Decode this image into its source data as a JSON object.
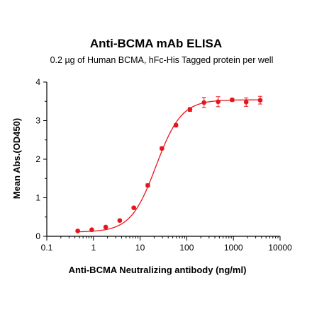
{
  "chart_data": {
    "type": "scatter",
    "title": "Anti-BCMA mAb ELISA",
    "subtitle": "0.2 µg of Human BCMA, hFc-His Tagged protein per well",
    "xlabel": "Anti-BCMA Neutralizing antibody (ng/ml)",
    "ylabel": "Mean Abs.(OD450)",
    "xscale": "log",
    "xlim": [
      0.1,
      10000
    ],
    "ylim": [
      0,
      4
    ],
    "x_ticks": [
      "0.1",
      "1",
      "10",
      "100",
      "1000",
      "10000"
    ],
    "y_ticks": [
      "0",
      "1",
      "2",
      "3",
      "4"
    ],
    "grid": false,
    "legend": "none",
    "color": "#e8141b",
    "series": [
      {
        "x": [
          0.46,
          0.92,
          1.83,
          3.66,
          7.32,
          14.6,
          29.3,
          58.6,
          117,
          234,
          469,
          938,
          1875,
          3750
        ],
        "y": [
          0.14,
          0.17,
          0.24,
          0.41,
          0.74,
          1.32,
          2.28,
          2.88,
          3.29,
          3.47,
          3.49,
          3.54,
          3.48,
          3.53
        ],
        "error": [
          0.02,
          0.02,
          0.02,
          0.03,
          0.03,
          0.04,
          0.04,
          0.04,
          0.05,
          0.13,
          0.13,
          0.04,
          0.11,
          0.1
        ]
      }
    ]
  }
}
